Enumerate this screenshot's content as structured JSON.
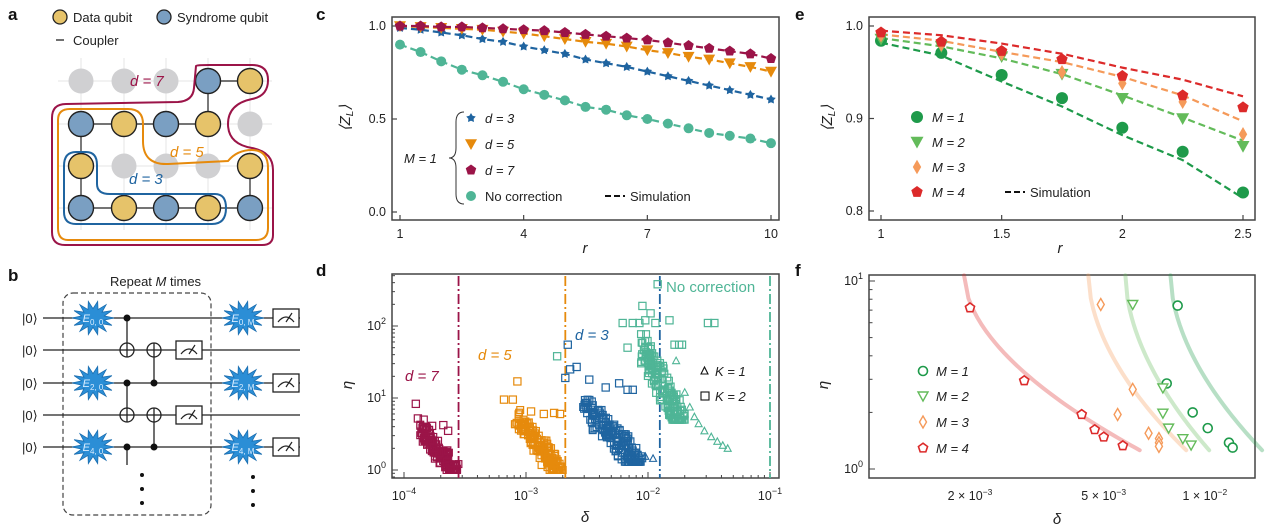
{
  "figure": {
    "panel_letters": [
      "a",
      "b",
      "c",
      "d",
      "e",
      "f"
    ],
    "colors": {
      "data_qubit": "#e6c36a",
      "syndrome_qubit": "#7a9fc2",
      "inactive_qubit": "#d0d0d2",
      "d3": "#1f64a0",
      "d5": "#e68a0c",
      "d7": "#9b1448",
      "no_correction": "#4fb596",
      "M1": "#1e9a4a",
      "M2": "#63bb5a",
      "M3": "#f59a5a",
      "M4": "#dc2a2a"
    }
  },
  "panel_a": {
    "legend": {
      "data_qubit": "Data qubit",
      "syndrome_qubit": "Syndrome qubit",
      "coupler": "Coupler"
    },
    "region_labels": {
      "d7": "d = 7",
      "d5": "d = 5",
      "d3": "d = 3"
    },
    "grid": [
      [
        "inactive",
        "inactive",
        "inactive",
        "syndrome",
        "data"
      ],
      [
        "syndrome",
        "data",
        "syndrome",
        "data",
        "inactive"
      ],
      [
        "data",
        "inactive",
        "inactive",
        "inactive",
        "data"
      ],
      [
        "syndrome",
        "data",
        "syndrome",
        "data",
        "syndrome"
      ]
    ]
  },
  "panel_b": {
    "title_prefix": "Repeat ",
    "title_var": "M",
    "title_suffix": " times",
    "inputs": [
      "|0⟩",
      "|0⟩",
      "|0⟩",
      "|0⟩",
      "|0⟩"
    ],
    "errors_start": [
      {
        "base": "E",
        "sub": "0, 0"
      },
      {
        "base": "E",
        "sub": "2, 0"
      },
      {
        "base": "E",
        "sub": "4, 0"
      }
    ],
    "errors_end": [
      {
        "base": "E",
        "sub": "0, M"
      },
      {
        "base": "E",
        "sub": "2, M"
      },
      {
        "base": "E",
        "sub": "4, M"
      }
    ]
  },
  "chart_data": [
    {
      "panel": "c",
      "type": "line",
      "xlabel": "r",
      "ylabel": "⟨Z_L⟩",
      "xlim": [
        1,
        10
      ],
      "ylim": [
        0.0,
        1.0
      ],
      "xticks": [
        "1",
        "4",
        "7",
        "10"
      ],
      "yticks": [
        "0.0",
        "0.5",
        "1.0"
      ],
      "x": [
        1,
        1.5,
        2,
        2.5,
        3,
        3.5,
        4,
        4.5,
        5,
        5.5,
        6,
        6.5,
        7,
        7.5,
        8,
        8.5,
        9,
        9.5,
        10
      ],
      "legend_group_label": "M = 1",
      "simulation_label": "Simulation",
      "series": [
        {
          "name": "d = 3",
          "marker": "star",
          "color_key": "d3",
          "values": [
            0.99,
            0.98,
            0.965,
            0.95,
            0.93,
            0.915,
            0.89,
            0.87,
            0.85,
            0.82,
            0.8,
            0.78,
            0.755,
            0.73,
            0.705,
            0.68,
            0.655,
            0.63,
            0.605
          ]
        },
        {
          "name": "d = 5",
          "marker": "triangle-down",
          "color_key": "d5",
          "values": [
            1.0,
            0.995,
            0.99,
            0.985,
            0.98,
            0.97,
            0.96,
            0.945,
            0.93,
            0.915,
            0.905,
            0.89,
            0.87,
            0.855,
            0.835,
            0.82,
            0.8,
            0.78,
            0.755
          ]
        },
        {
          "name": "d = 7",
          "marker": "pentagon",
          "color_key": "d7",
          "values": [
            1.0,
            1.0,
            0.995,
            0.995,
            0.99,
            0.985,
            0.98,
            0.975,
            0.965,
            0.955,
            0.945,
            0.935,
            0.925,
            0.91,
            0.895,
            0.88,
            0.865,
            0.85,
            0.825
          ]
        },
        {
          "name": "No correction",
          "marker": "circle",
          "color_key": "no_correction",
          "values": [
            0.9,
            0.86,
            0.81,
            0.765,
            0.735,
            0.7,
            0.66,
            0.63,
            0.6,
            0.565,
            0.55,
            0.52,
            0.5,
            0.475,
            0.45,
            0.425,
            0.41,
            0.395,
            0.37
          ]
        }
      ]
    },
    {
      "panel": "d",
      "type": "scatter",
      "xlabel": "δ",
      "ylabel": "η",
      "xscale": "log",
      "yscale": "log",
      "xlim": [
        9e-05,
        0.12
      ],
      "ylim": [
        0.75,
        400
      ],
      "xticks": [
        {
          "base": "10",
          "exp": "−4"
        },
        {
          "base": "10",
          "exp": "−3"
        },
        {
          "base": "10",
          "exp": "−2"
        },
        {
          "base": "10",
          "exp": "−1"
        }
      ],
      "yticks": [
        {
          "base": "10",
          "exp": "0"
        },
        {
          "base": "10",
          "exp": "1"
        },
        {
          "base": "10",
          "exp": "2"
        }
      ],
      "legend": [
        {
          "marker": "triangle-up",
          "label": "K = 1"
        },
        {
          "marker": "square",
          "label": "K = 2"
        }
      ],
      "thresholds": [
        {
          "label": "d = 7",
          "color_key": "d7",
          "x": 0.00028
        },
        {
          "label": "d = 5",
          "color_key": "d5",
          "x": 0.0021
        },
        {
          "label": "d = 3",
          "color_key": "d3",
          "x": 0.0125
        },
        {
          "label": "No correction",
          "color_key": "no_correction",
          "x": 0.1
        }
      ],
      "clusters": [
        {
          "name": "d = 7",
          "color_key": "d7",
          "outliers_K2": [
            [
              0.000125,
              8.3
            ],
            [
              0.00013,
              5.2
            ],
            [
              0.000145,
              5
            ],
            [
              0.00017,
              4.1
            ],
            [
              0.00021,
              4.2
            ],
            [
              0.00023,
              3.5
            ]
          ],
          "dense_region": {
            "x_range": [
              0.00013,
              0.00028
            ],
            "y_range": [
              1.0,
              4.5
            ]
          }
        },
        {
          "name": "d = 5",
          "color_key": "d5",
          "outliers_K2": [
            [
              0.00066,
              9.5
            ],
            [
              0.00078,
              9.5
            ],
            [
              0.00085,
              17
            ],
            [
              0.0011,
              6.5
            ],
            [
              0.0014,
              6
            ],
            [
              0.0017,
              6.2
            ],
            [
              0.0019,
              6
            ]
          ],
          "dense_region": {
            "x_range": [
              0.0008,
              0.002
            ],
            "y_range": [
              1.0,
              7
            ]
          }
        },
        {
          "name": "d = 3",
          "color_key": "d3",
          "outliers_K2": [
            [
              0.0021,
              19
            ],
            [
              0.0023,
              25
            ],
            [
              0.0022,
              55
            ],
            [
              0.0026,
              27
            ],
            [
              0.0033,
              18
            ],
            [
              0.0045,
              14
            ],
            [
              0.0058,
              16
            ],
            [
              0.0068,
              13
            ],
            [
              0.0075,
              13
            ]
          ],
          "dense_region": {
            "x_range": [
              0.0028,
              0.009
            ],
            "y_range": [
              1.3,
              12
            ]
          },
          "K1_tail": [
            [
              0.006,
              2.2
            ],
            [
              0.007,
              1.9
            ],
            [
              0.0085,
              1.7
            ],
            [
              0.0095,
              1.55
            ],
            [
              0.011,
              1.45
            ]
          ]
        },
        {
          "name": "No correction",
          "color_key": "no_correction",
          "outliers_K2": [
            [
              0.0018,
              38
            ],
            [
              0.0062,
              110
            ],
            [
              0.0075,
              110
            ],
            [
              0.0085,
              110
            ],
            [
              0.0095,
              120
            ],
            [
              0.0105,
              150
            ],
            [
              0.0115,
              110
            ],
            [
              0.015,
              120
            ],
            [
              0.012,
              380
            ],
            [
              0.009,
              190
            ],
            [
              0.0068,
              50
            ],
            [
              0.0165,
              55
            ],
            [
              0.018,
              55
            ],
            [
              0.019,
              55
            ],
            [
              0.031,
              110
            ],
            [
              0.035,
              110
            ]
          ],
          "dense_region": {
            "x_range": [
              0.008,
              0.02
            ],
            "y_range": [
              5,
              100
            ]
          },
          "K1_tail": [
            [
              0.017,
              33
            ],
            [
              0.02,
              12
            ],
            [
              0.022,
              7.5
            ],
            [
              0.024,
              5.5
            ],
            [
              0.026,
              4.4
            ],
            [
              0.029,
              3.5
            ],
            [
              0.033,
              2.9
            ],
            [
              0.037,
              2.5
            ],
            [
              0.041,
              2.2
            ],
            [
              0.045,
              2.0
            ]
          ]
        }
      ]
    },
    {
      "panel": "e",
      "type": "line",
      "xlabel": "r",
      "ylabel": "⟨Z_L⟩",
      "xlim": [
        1,
        2.5
      ],
      "ylim": [
        0.8,
        1.0
      ],
      "xticks": [
        "1",
        "1.5",
        "2",
        "2.5"
      ],
      "yticks": [
        "0.8",
        "0.9",
        "1.0"
      ],
      "x": [
        1,
        1.25,
        1.5,
        1.75,
        2,
        2.25,
        2.5
      ],
      "simulation_label": "Simulation",
      "series": [
        {
          "name": "M = 1",
          "marker": "circle",
          "color_key": "M1",
          "values": [
            0.984,
            0.971,
            0.947,
            0.922,
            0.89,
            0.864,
            0.82
          ],
          "simulation": [
            0.982,
            0.968,
            0.94,
            0.913,
            0.882,
            0.855,
            0.814
          ]
        },
        {
          "name": "M = 2",
          "marker": "triangle-down",
          "color_key": "M2",
          "values": [
            0.986,
            0.978,
            0.967,
            0.948,
            0.922,
            0.9,
            0.87
          ],
          "simulation": [
            0.987,
            0.978,
            0.965,
            0.948,
            0.925,
            0.901,
            0.876
          ]
        },
        {
          "name": "M = 3",
          "marker": "diamond",
          "color_key": "M3",
          "values": [
            0.99,
            0.98,
            0.97,
            0.95,
            0.938,
            0.918,
            0.883
          ],
          "simulation": [
            0.991,
            0.984,
            0.972,
            0.961,
            0.945,
            0.925,
            0.897
          ]
        },
        {
          "name": "M = 4",
          "marker": "pentagon",
          "color_key": "M4",
          "values": [
            0.993,
            0.983,
            0.973,
            0.964,
            0.946,
            0.925,
            0.912
          ],
          "simulation": [
            0.995,
            0.99,
            0.981,
            0.97,
            0.955,
            0.942,
            0.924
          ]
        }
      ]
    },
    {
      "panel": "f",
      "type": "scatter",
      "xlabel": "δ",
      "ylabel": "η",
      "xscale": "log",
      "yscale": "log",
      "xlim": [
        0.0013,
        0.0145
      ],
      "ylim": [
        0.92,
        11
      ],
      "xticks": [
        {
          "value": 0.002,
          "label": "2 × 10",
          "exp": "−3"
        },
        {
          "value": 0.005,
          "label": "5 × 10",
          "exp": "−3"
        },
        {
          "value": 0.01,
          "label": "1 × 10",
          "exp": "−2"
        }
      ],
      "yticks": [
        {
          "base": "10",
          "exp": "0"
        },
        {
          "base": "10",
          "exp": "1"
        }
      ],
      "series": [
        {
          "name": "M = 1",
          "marker": "circle-open",
          "color_key": "M1",
          "points": [
            [
              0.0083,
              7.4
            ],
            [
              0.0077,
              2.85
            ],
            [
              0.0092,
              2.0
            ],
            [
              0.0102,
              1.65
            ],
            [
              0.0118,
              1.38
            ],
            [
              0.0121,
              1.3
            ]
          ],
          "fit_x0": 0.0083
        },
        {
          "name": "M = 2",
          "marker": "triangle-down-open",
          "color_key": "M2",
          "points": [
            [
              0.0061,
              7.5
            ],
            [
              0.0075,
              2.7
            ],
            [
              0.0075,
              1.98
            ],
            [
              0.0078,
              1.65
            ],
            [
              0.0086,
              1.45
            ],
            [
              0.0091,
              1.34
            ]
          ],
          "fit_x0": 0.0062
        },
        {
          "name": "M = 3",
          "marker": "diamond-open",
          "color_key": "M3",
          "points": [
            [
              0.0049,
              7.5
            ],
            [
              0.0061,
              2.65
            ],
            [
              0.0055,
              1.95
            ],
            [
              0.0068,
              1.55
            ],
            [
              0.0073,
              1.45
            ],
            [
              0.0073,
              1.38
            ],
            [
              0.0073,
              1.32
            ]
          ],
          "fit_x0": 0.0047
        },
        {
          "name": "M = 4",
          "marker": "pentagon-open",
          "color_key": "M4",
          "points": [
            [
              0.002,
              7.2
            ],
            [
              0.0029,
              2.95
            ],
            [
              0.0043,
              1.95
            ],
            [
              0.0047,
              1.62
            ],
            [
              0.005,
              1.48
            ],
            [
              0.0057,
              1.33
            ]
          ],
          "fit_x0": 0.0023
        }
      ]
    }
  ]
}
